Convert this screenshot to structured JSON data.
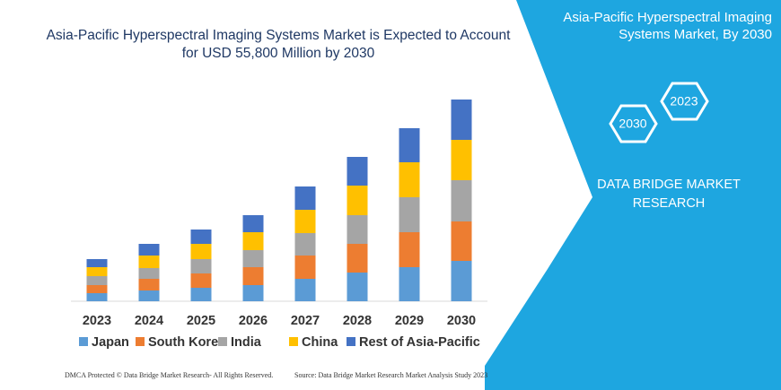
{
  "chart_data": {
    "type": "bar",
    "stacked": true,
    "title": "Asia-Pacific Hyperspectral Imaging Systems Market is Expected to Account for USD 55,800 Million by 2030",
    "categories": [
      "2023",
      "2024",
      "2025",
      "2026",
      "2027",
      "2028",
      "2029",
      "2030"
    ],
    "series": [
      {
        "name": "Japan",
        "color": "#5b9bd5",
        "values": [
          9,
          12,
          15,
          18,
          25,
          32,
          38,
          45
        ]
      },
      {
        "name": "South Korea",
        "color": "#ed7d31",
        "values": [
          9,
          13,
          16,
          20,
          26,
          32,
          39,
          44
        ]
      },
      {
        "name": "India",
        "color": "#a5a5a5",
        "values": [
          10,
          12,
          16,
          19,
          25,
          32,
          39,
          46
        ]
      },
      {
        "name": "China",
        "color": "#ffc000",
        "values": [
          10,
          14,
          17,
          20,
          26,
          33,
          39,
          45
        ]
      },
      {
        "name": "Rest of Asia-Pacific",
        "color": "#4472c4",
        "values": [
          9,
          13,
          16,
          19,
          26,
          32,
          38,
          45
        ]
      }
    ],
    "ylim": [
      0,
      230
    ]
  },
  "panel": {
    "title": "Asia-Pacific Hyperspectral Imaging Systems Market, By 2030",
    "badges": [
      "2023",
      "2030"
    ],
    "brand": "DATA BRIDGE MARKET RESEARCH"
  },
  "footer": {
    "left": "DMCA Protected © Data Bridge Market Research-  All Rights Reserved.",
    "right": "Source: Data Bridge Market Research  Market Analysis Study 2023"
  }
}
